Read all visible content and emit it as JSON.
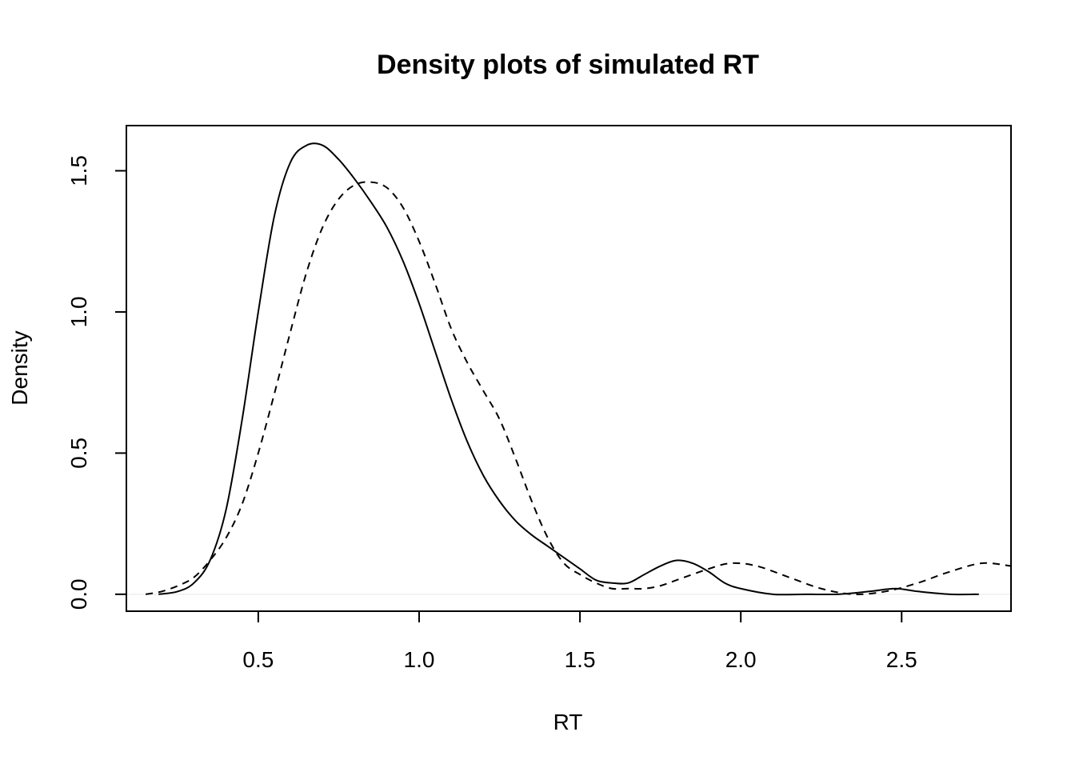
{
  "chart_data": {
    "type": "line",
    "title": "Density plots of simulated RT",
    "xlabel": "RT",
    "ylabel": "Density",
    "xlim": [
      0.09,
      2.84
    ],
    "ylim": [
      -0.06,
      1.66
    ],
    "xticks": [
      0.5,
      1.0,
      1.5,
      2.0,
      2.5
    ],
    "xtick_labels": [
      "0.5",
      "1.0",
      "1.5",
      "2.0",
      "2.5"
    ],
    "yticks": [
      0.0,
      0.5,
      1.0,
      1.5
    ],
    "ytick_labels": [
      "0.0",
      "0.5",
      "1.0",
      "1.5"
    ],
    "grid": false,
    "legend": "none",
    "baseline_y": 0,
    "series": [
      {
        "style": "solid",
        "color": "#000000",
        "x": [
          0.19,
          0.25,
          0.3,
          0.35,
          0.4,
          0.45,
          0.5,
          0.55,
          0.6,
          0.65,
          0.7,
          0.75,
          0.8,
          0.85,
          0.9,
          0.95,
          1.0,
          1.05,
          1.1,
          1.15,
          1.2,
          1.25,
          1.3,
          1.35,
          1.4,
          1.45,
          1.5,
          1.55,
          1.6,
          1.65,
          1.7,
          1.75,
          1.8,
          1.85,
          1.9,
          1.95,
          2.0,
          2.1,
          2.2,
          2.3,
          2.4,
          2.48,
          2.55,
          2.65,
          2.74
        ],
        "y": [
          0.0,
          0.01,
          0.04,
          0.12,
          0.3,
          0.62,
          1.0,
          1.34,
          1.53,
          1.59,
          1.59,
          1.54,
          1.47,
          1.39,
          1.3,
          1.18,
          1.03,
          0.86,
          0.69,
          0.54,
          0.42,
          0.33,
          0.26,
          0.21,
          0.17,
          0.13,
          0.09,
          0.05,
          0.04,
          0.04,
          0.07,
          0.1,
          0.12,
          0.11,
          0.08,
          0.04,
          0.02,
          0.0,
          0.0,
          0.0,
          0.01,
          0.02,
          0.01,
          0.0,
          0.0
        ]
      },
      {
        "style": "dashed",
        "color": "#000000",
        "x": [
          0.15,
          0.2,
          0.25,
          0.3,
          0.35,
          0.4,
          0.45,
          0.5,
          0.55,
          0.6,
          0.65,
          0.7,
          0.75,
          0.8,
          0.85,
          0.9,
          0.95,
          1.0,
          1.05,
          1.1,
          1.15,
          1.2,
          1.25,
          1.3,
          1.35,
          1.4,
          1.45,
          1.5,
          1.55,
          1.6,
          1.65,
          1.7,
          1.75,
          1.8,
          1.9,
          1.97,
          2.05,
          2.15,
          2.25,
          2.35,
          2.45,
          2.55,
          2.65,
          2.75,
          2.84
        ],
        "y": [
          0.0,
          0.01,
          0.03,
          0.06,
          0.12,
          0.2,
          0.32,
          0.5,
          0.71,
          0.93,
          1.14,
          1.3,
          1.4,
          1.45,
          1.46,
          1.44,
          1.37,
          1.25,
          1.1,
          0.94,
          0.82,
          0.72,
          0.62,
          0.48,
          0.33,
          0.2,
          0.11,
          0.07,
          0.04,
          0.02,
          0.02,
          0.02,
          0.03,
          0.05,
          0.09,
          0.11,
          0.1,
          0.06,
          0.02,
          0.0,
          0.01,
          0.04,
          0.08,
          0.11,
          0.1
        ]
      }
    ]
  }
}
